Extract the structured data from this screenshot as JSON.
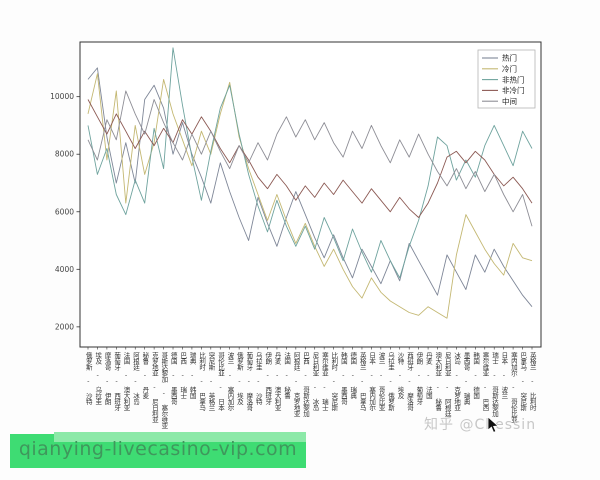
{
  "watermark": {
    "text": "知乎 @Chessin",
    "color": "#c7c7c7"
  },
  "banner": {
    "text": "qianying-livecasino-vip.com",
    "bg_color": "#3edc73",
    "strip_color": "#8ce9a8",
    "text_color": "#3f975c"
  },
  "chart_data": {
    "type": "line",
    "title": "",
    "xlabel": "",
    "ylabel": "",
    "grid": false,
    "legend_position": "upper right",
    "ylim": [
      1300,
      11900
    ],
    "yticks": [
      2000,
      4000,
      6000,
      8000,
      10000
    ],
    "categories": [
      "俄罗斯 - 沙特",
      "埃及 - 乌拉圭",
      "摩洛哥 - 伊朗",
      "葡萄牙 - 西班牙",
      "法国 - 澳大利亚",
      "阿根廷 - 冰岛",
      "秘鲁 - 丹麦",
      "克罗地亚 - 尼日利亚",
      "哥斯达黎加 - 塞尔维亚",
      "德国 - 墨西哥",
      "巴西 - 瑞士",
      "瑞典 - 韩国",
      "比利时 - 巴拿马",
      "突尼斯 - 英格兰",
      "哥伦比亚 - 日本",
      "波兰 - 塞内加尔",
      "俄罗斯 - 埃及",
      "葡萄牙 - 摩洛哥",
      "乌拉圭 - 沙特",
      "伊朗 - 西班牙",
      "丹麦 - 澳大利亚",
      "法国 - 秘鲁",
      "阿根廷 - 克罗地亚",
      "巴西 - 哥斯达黎加",
      "尼日利亚 - 冰岛",
      "塞尔维亚 - 瑞士",
      "比利时 - 突尼斯",
      "韩国 - 墨西哥",
      "德国 - 瑞典",
      "英格兰 - 巴拿马",
      "日本 - 塞内加尔",
      "波兰 - 哥伦比亚",
      "乌拉圭 - 俄罗斯",
      "沙特 - 埃及",
      "西班牙 - 摩洛哥",
      "伊朗 - 葡萄牙",
      "丹麦 - 法国",
      "澳大利亚 - 秘鲁",
      "尼日利亚 - 阿根廷",
      "冰岛 - 克罗地亚",
      "墨西哥 - 瑞典",
      "韩国 - 德国",
      "塞尔维亚 - 巴西",
      "瑞士 - 哥斯达黎加",
      "日本 - 波兰",
      "塞内加尔 - 哥伦比亚",
      "巴拿马 - 突尼斯",
      "英格兰 - 比利时"
    ],
    "series": [
      {
        "name": "热门",
        "color": "#7f8798",
        "values": [
          10600,
          11000,
          8600,
          7000,
          8400,
          7000,
          9900,
          10400,
          9600,
          8000,
          9100,
          8000,
          7200,
          6300,
          7700,
          6700,
          5800,
          5000,
          6500,
          5600,
          4800,
          5800,
          6700,
          5900,
          5100,
          4400,
          5200,
          4400,
          3700,
          4700,
          4100,
          3500,
          4300,
          3600,
          4900,
          4300,
          3700,
          3100,
          4500,
          3900,
          3300,
          4500,
          3900,
          4700,
          4100,
          3600,
          3100,
          2700
        ]
      },
      {
        "name": "冷门",
        "color": "#c4b873",
        "values": [
          9400,
          10800,
          7800,
          10200,
          6300,
          9000,
          7300,
          8400,
          10600,
          9400,
          8500,
          7600,
          8800,
          8000,
          9400,
          10500,
          8600,
          7500,
          6600,
          5700,
          6600,
          5700,
          4900,
          5600,
          4800,
          4100,
          4700,
          4000,
          3400,
          3000,
          3700,
          3200,
          2900,
          2700,
          2500,
          2400,
          2700,
          2500,
          2300,
          4500,
          5900,
          5300,
          4700,
          4200,
          3800,
          4900,
          4400,
          4300
        ]
      },
      {
        "name": "非热门",
        "color": "#6fa39e",
        "values": [
          9000,
          7300,
          8200,
          6600,
          5900,
          7100,
          6300,
          8900,
          7500,
          11700,
          9700,
          7900,
          6400,
          8100,
          9600,
          10400,
          8700,
          7300,
          6200,
          5300,
          6400,
          5500,
          4800,
          5500,
          4700,
          5800,
          5100,
          4300,
          5400,
          4600,
          3900,
          5000,
          4300,
          3700,
          4800,
          5700,
          6900,
          8600,
          8300,
          7100,
          7800,
          7200,
          8300,
          9000,
          8300,
          7600,
          8800,
          8200
        ]
      },
      {
        "name": "非冷门",
        "color": "#8c5a54",
        "values": [
          9900,
          9300,
          8700,
          9400,
          8800,
          8200,
          8800,
          8300,
          8900,
          8400,
          9200,
          8700,
          9300,
          8800,
          8200,
          7700,
          8300,
          7800,
          7200,
          6800,
          7300,
          6900,
          6400,
          6900,
          6500,
          7000,
          6600,
          7100,
          6700,
          6300,
          6800,
          6400,
          6000,
          6500,
          6100,
          5800,
          6300,
          7000,
          7900,
          8100,
          7700,
          8100,
          7800,
          7300,
          6900,
          7200,
          6800,
          6300
        ]
      },
      {
        "name": "中间",
        "color": "#8e8e96",
        "values": [
          8500,
          7800,
          9200,
          8500,
          10200,
          9400,
          8700,
          9900,
          9100,
          8400,
          7800,
          8700,
          8000,
          8800,
          8100,
          7500,
          8300,
          7700,
          8400,
          7800,
          8700,
          9300,
          8600,
          9200,
          8500,
          9100,
          8400,
          7900,
          8800,
          8200,
          9000,
          8300,
          7700,
          8500,
          7900,
          8700,
          8000,
          7400,
          6900,
          7500,
          6800,
          7400,
          6700,
          7300,
          6600,
          6000,
          6600,
          5500
        ]
      }
    ]
  }
}
